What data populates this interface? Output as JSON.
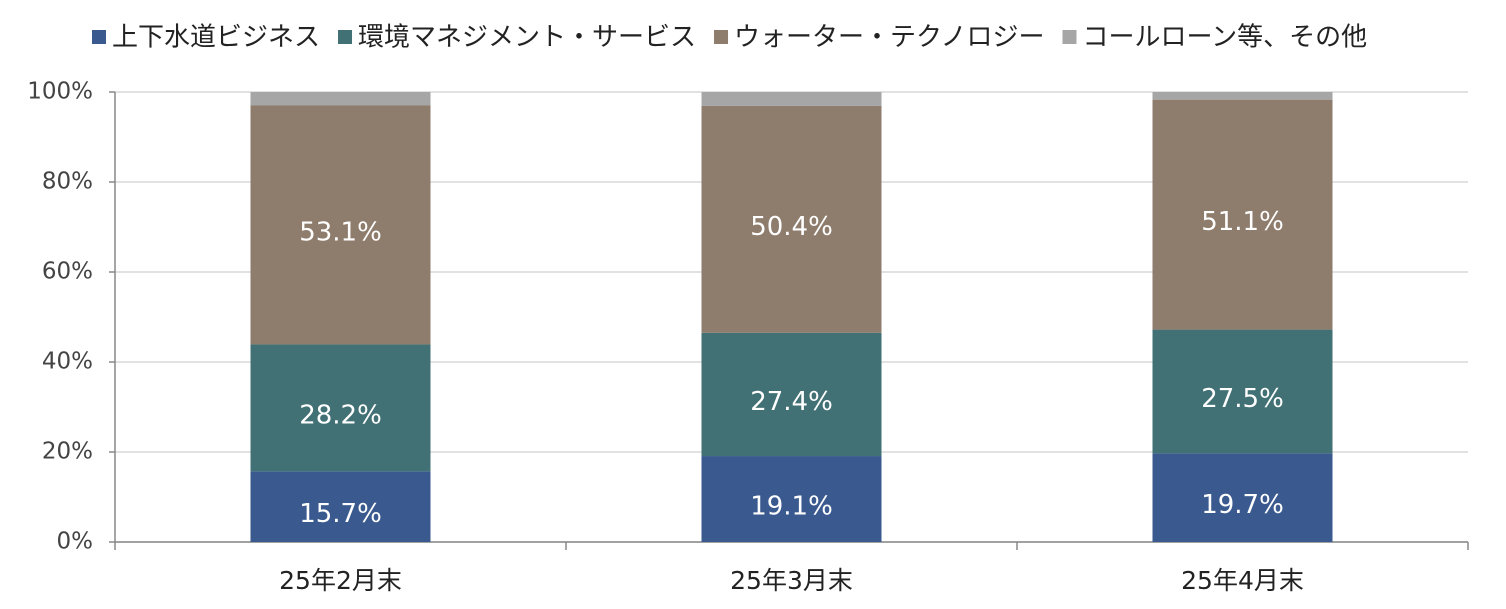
{
  "chart_data": {
    "type": "stacked_bar",
    "categories": [
      "25年2月末",
      "25年3月末",
      "25年4月末"
    ],
    "series": [
      {
        "name": "上下水道ビジネス",
        "color": "#3a5a8f",
        "values": [
          15.7,
          19.1,
          19.7
        ],
        "value_labels": [
          "15.7%",
          "19.1%",
          "19.7%"
        ]
      },
      {
        "name": "環境マネジメント・サービス",
        "color": "#427175",
        "values": [
          28.2,
          27.4,
          27.5
        ],
        "value_labels": [
          "28.2%",
          "27.4%",
          "27.5%"
        ]
      },
      {
        "name": "ウォーター・テクノロジー",
        "color": "#8e7c6c",
        "values": [
          53.1,
          50.4,
          51.1
        ],
        "value_labels": [
          "53.1%",
          "50.4%",
          "51.1%"
        ]
      },
      {
        "name": "コールローン等、その他",
        "color": "#a6a6a6",
        "values": [
          3.0,
          3.1,
          1.7
        ]
      }
    ],
    "ylim": [
      0,
      100
    ],
    "yticks": [
      {
        "value": 0,
        "label": "0%"
      },
      {
        "value": 20,
        "label": "20%"
      },
      {
        "value": 40,
        "label": "40%"
      },
      {
        "value": 60,
        "label": "60%"
      },
      {
        "value": 80,
        "label": "80%"
      },
      {
        "value": 100,
        "label": "100%"
      }
    ],
    "grid": true,
    "legend": "top"
  }
}
